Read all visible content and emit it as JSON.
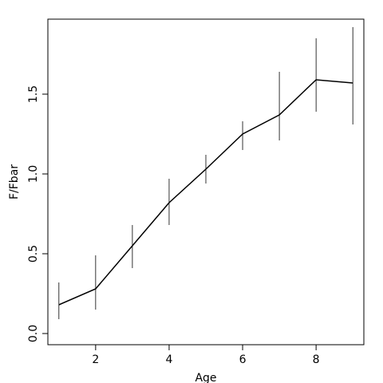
{
  "chart_data": {
    "type": "line",
    "title": "",
    "xlabel": "Age",
    "ylabel": "F/Fbar",
    "xlim": [
      0.7,
      9.3
    ],
    "ylim": [
      -0.07,
      1.97
    ],
    "xticks": [
      2,
      4,
      6,
      8
    ],
    "xtick_labels": [
      "2",
      "4",
      "6",
      "8"
    ],
    "yticks": [
      0.0,
      0.5,
      1.0,
      1.5
    ],
    "ytick_labels": [
      "0.0",
      "0.5",
      "1.0",
      "1.5"
    ],
    "grid": false,
    "series": [
      {
        "x": [
          1,
          2,
          3,
          4,
          5,
          6,
          7,
          8,
          9
        ],
        "y": [
          0.18,
          0.28,
          0.55,
          0.82,
          1.03,
          1.25,
          1.37,
          1.59,
          1.57
        ],
        "lower": [
          0.09,
          0.15,
          0.41,
          0.68,
          0.94,
          1.15,
          1.21,
          1.39,
          1.31
        ],
        "upper": [
          0.32,
          0.49,
          0.68,
          0.97,
          1.12,
          1.33,
          1.64,
          1.85,
          1.92
        ]
      }
    ]
  }
}
